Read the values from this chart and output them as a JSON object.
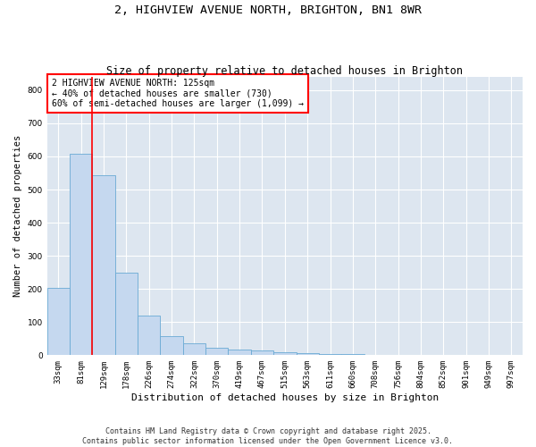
{
  "title": "2, HIGHVIEW AVENUE NORTH, BRIGHTON, BN1 8WR",
  "subtitle": "Size of property relative to detached houses in Brighton",
  "xlabel": "Distribution of detached houses by size in Brighton",
  "ylabel": "Number of detached properties",
  "bar_labels": [
    "33sqm",
    "81sqm",
    "129sqm",
    "178sqm",
    "226sqm",
    "274sqm",
    "322sqm",
    "370sqm",
    "419sqm",
    "467sqm",
    "515sqm",
    "563sqm",
    "611sqm",
    "660sqm",
    "708sqm",
    "756sqm",
    "804sqm",
    "852sqm",
    "901sqm",
    "949sqm",
    "997sqm"
  ],
  "bar_values": [
    203,
    607,
    543,
    250,
    120,
    58,
    35,
    22,
    18,
    14,
    8,
    5,
    4,
    3,
    2,
    2,
    1,
    1,
    0,
    0,
    0
  ],
  "bar_color": "#c5d8ef",
  "bar_edge_color": "#6aaad4",
  "red_line_x": 1.5,
  "annotation_text": "2 HIGHVIEW AVENUE NORTH: 125sqm\n← 40% of detached houses are smaller (730)\n60% of semi-detached houses are larger (1,099) →",
  "annotation_box_color": "white",
  "annotation_box_edge_color": "red",
  "red_line_color": "red",
  "ylim": [
    0,
    840
  ],
  "yticks": [
    0,
    100,
    200,
    300,
    400,
    500,
    600,
    700,
    800
  ],
  "background_color": "#dde6f0",
  "grid_color": "white",
  "footer": "Contains HM Land Registry data © Crown copyright and database right 2025.\nContains public sector information licensed under the Open Government Licence v3.0.",
  "title_fontsize": 9.5,
  "subtitle_fontsize": 8.5,
  "xlabel_fontsize": 8,
  "ylabel_fontsize": 7.5,
  "tick_fontsize": 6.5,
  "annotation_fontsize": 7,
  "footer_fontsize": 6
}
